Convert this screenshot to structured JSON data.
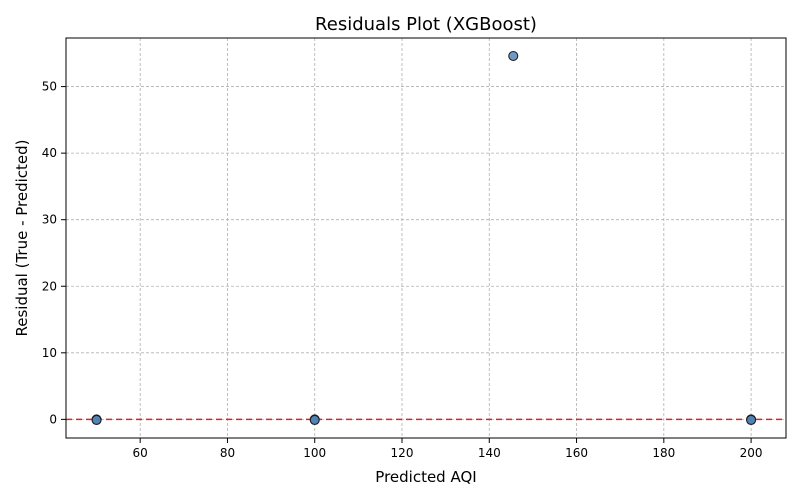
{
  "chart_data": {
    "type": "scatter",
    "title": "Residuals Plot (XGBoost)",
    "xlabel": "Predicted AQI",
    "ylabel": "Residual (True - Predicted)",
    "xlim": [
      43,
      208
    ],
    "ylim": [
      -2.8,
      57.3
    ],
    "xticks": [
      60,
      80,
      100,
      120,
      140,
      160,
      180,
      200
    ],
    "yticks": [
      0,
      10,
      20,
      30,
      40,
      50
    ],
    "grid": true,
    "reference_line": {
      "y": 0,
      "color": "#d62728",
      "style": "dashed"
    },
    "marker_color": "#4a7fb5",
    "points": [
      {
        "x": 50,
        "y": 0
      },
      {
        "x": 50,
        "y": -0.1
      },
      {
        "x": 100,
        "y": 0
      },
      {
        "x": 100,
        "y": -0.1
      },
      {
        "x": 145.5,
        "y": 54.6
      },
      {
        "x": 200,
        "y": 0
      },
      {
        "x": 200,
        "y": -0.1
      }
    ]
  }
}
